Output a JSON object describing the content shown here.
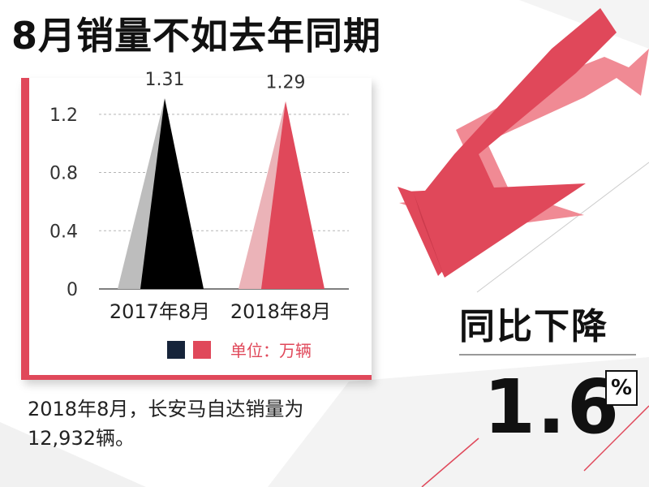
{
  "title": "8月销量不如去年同期",
  "decline": {
    "label": "同比下降",
    "value": "1.6",
    "percent": "%"
  },
  "note": "2018年8月，长安马自达销量为12,932辆。",
  "legend": {
    "unit": "单位：万辆",
    "swatches": [
      {
        "name": "2017年8月",
        "color": "#16243a"
      },
      {
        "name": "2018年8月",
        "color": "#e0485a"
      }
    ]
  },
  "chart_data": {
    "type": "bar",
    "title": "",
    "xlabel": "",
    "ylabel": "",
    "categories": [
      "2017年8月",
      "2018年8月"
    ],
    "values": [
      1.31,
      1.29
    ],
    "data_labels": [
      "1.31",
      "1.29"
    ],
    "ylim": [
      0,
      1.45
    ],
    "yticks": [
      0,
      0.4,
      0.8,
      1.2
    ],
    "ytick_labels": [
      "0",
      "0.4",
      "0.8",
      "1.2"
    ],
    "grid": true,
    "bar_shape": "triangle",
    "colors": {
      "bar_2017": "#000000",
      "shadow_2017": "#bdbdbd",
      "bar_2018": "#e0485a",
      "shadow_2018": "#ebb3b8",
      "grid": "#b5b5b5"
    }
  },
  "colors": {
    "accent": "#e0485a",
    "arrow": "#e0485a"
  }
}
